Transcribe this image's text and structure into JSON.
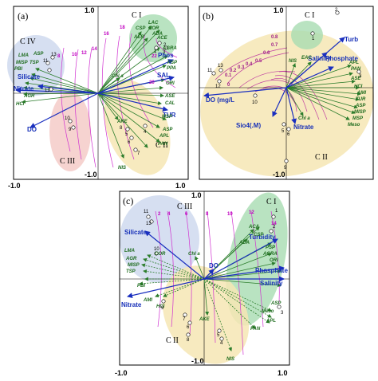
{
  "panel_a": {
    "label": "(a)",
    "ticks": {
      "top": "1.0",
      "bottom": "-1.0",
      "left": "-1.0",
      "right": "1.0"
    },
    "groups": {
      "c1": "C I",
      "c2": "C II",
      "c3": "C III",
      "c4": "C IV"
    },
    "env": {
      "phos": "Phos",
      "sal": "SAL",
      "tur": "TUR",
      "silicate": "Silicate",
      "nitrate": "Nitrate",
      "do": "DO"
    },
    "species": {
      "csp": "CSP",
      "lac": "LAC",
      "cor": "COR",
      "ada": "ADA",
      "ace": "ACE",
      "aer": "AER",
      "agra": "AGRA",
      "psp": "PSP",
      "ppa": "PPA",
      "ori": "ORI",
      "cha": "Chl a",
      "lma": "LMA",
      "asp1": "ASP",
      "misp": "MISP",
      "tsp": "TSP",
      "pbi": "PBI",
      "agr": "AGR",
      "hci": "HCI",
      "ase": "ASE",
      "cal": "CAL",
      "ake": "AKE",
      "msp": "MSP",
      "asp2": "ASP",
      "apl": "APL",
      "pan": "PAN",
      "nis": "NIS"
    },
    "contours": {
      "c8": "8",
      "c10": "10",
      "c12": "12",
      "c14": "14",
      "c16": "16",
      "c18": "18",
      "c20": "20",
      "c22": "22"
    },
    "sites": {
      "s1": "1",
      "s2": "2",
      "s3": "3",
      "s4": "4",
      "s5": "5",
      "s6": "6",
      "s7": "7",
      "s8": "8",
      "s9": "9",
      "s10": "10",
      "s11": "11",
      "s12": "12",
      "s13": "13"
    }
  },
  "panel_b": {
    "label": "(b)",
    "ticks": {
      "top": "1.0",
      "bottom": "-1.0"
    },
    "groups": {
      "c1": "C I",
      "c2": "C II"
    },
    "env": {
      "turb": "Turb",
      "salinity": "Salinity",
      "phosphate": "Phosphate",
      "do": "DO (mg/L",
      "sio4": "Sio4(.M)",
      "nitrate": "Nitrate"
    },
    "species": {
      "nis": "NIS",
      "eac": "EAC",
      "apl": "APL",
      "pan": "PAN",
      "ase": "ASE",
      "hci": "HCI",
      "ami": "AMI",
      "tur": "TUR",
      "asp": "ASP",
      "misp": "MISP",
      "msp": "MSP",
      "meso": "Meso",
      "cha": "Chl a"
    },
    "contours": {
      "c0": "0",
      "c01": "0.1",
      "c02": "0.2",
      "c03": "0.3",
      "c04": "0.4",
      "c05": "0.5",
      "c06": "0.6",
      "c07": "0.7",
      "c08": "0.8"
    },
    "sites": {
      "s1": "1",
      "s2": "2",
      "s3": "3",
      "s5": "5",
      "s6": "6",
      "s9": "9",
      "s10": "10",
      "s11": "11",
      "s12": "12",
      "s13": "13"
    }
  },
  "panel_c": {
    "label": "(c)",
    "ticks": {
      "top": "1.0",
      "bottom": "-1.0",
      "left": "-1.0",
      "right": "1.0"
    },
    "groups": {
      "c1": "C I",
      "c2": "C II",
      "c3": "C III"
    },
    "env": {
      "silicate": "Silicate",
      "turbidity": "Turbidity",
      "do": "DO",
      "phosphate": "Phosphate",
      "salinity": "Salinity",
      "nitrate": "Nitrate"
    },
    "species": {
      "aca": "ACA",
      "csp": "CSP",
      "ada": "ADA",
      "psp": "PSP",
      "agra": "AGRA",
      "ori": "ORI",
      "cha": "Chl a",
      "cor": "COR",
      "agr": "AGR",
      "tsp": "TSP",
      "misp": "MISP",
      "lma": "LMA",
      "pbi": "PBI",
      "ami": "AMI",
      "hci": "HCI",
      "ake": "AKE",
      "nis": "NIS",
      "asp": "ASP",
      "meso": "Meso",
      "apl": "APL",
      "pan": "PAN"
    },
    "contours": {
      "c2": "2",
      "c4": "4",
      "c6": "6",
      "c8": "8",
      "c10": "10",
      "c12": "12",
      "c14": "14"
    },
    "sites": {
      "s1": "1",
      "s2": "2",
      "s3": "3",
      "s4": "4",
      "s5": "5",
      "s6": "6",
      "s7": "7",
      "s8": "8",
      "s9": "9",
      "s10": "10",
      "s11": "11",
      "s13": "13"
    }
  }
}
